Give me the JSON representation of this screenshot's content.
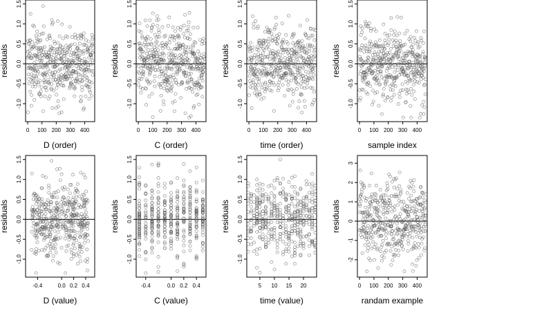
{
  "chart_data": [
    {
      "type": "scatter",
      "xlabel": "D (order)",
      "ylabel": "residuals",
      "xlim": [
        -15,
        470
      ],
      "ylim": [
        -1.45,
        1.6
      ],
      "xticks": [
        "0",
        "100",
        "200",
        "300",
        "400"
      ],
      "yticks": [
        "-1.0",
        "-0.5",
        "0.0",
        "0.5",
        "1.0",
        "1.5"
      ],
      "hline": 0,
      "n_points": 460,
      "x_range": [
        0,
        460
      ],
      "y_range": [
        -1.35,
        1.5
      ],
      "x_mode": "index",
      "y_sd": 0.48
    },
    {
      "type": "scatter",
      "xlabel": "C (order)",
      "ylabel": "residuals",
      "xlim": [
        -15,
        470
      ],
      "ylim": [
        -1.45,
        1.6
      ],
      "xticks": [
        "0",
        "100",
        "200",
        "300",
        "400"
      ],
      "yticks": [
        "-1.0",
        "-0.5",
        "0.0",
        "0.5",
        "1.0",
        "1.5"
      ],
      "hline": 0,
      "n_points": 460,
      "x_range": [
        0,
        460
      ],
      "y_range": [
        -1.35,
        1.5
      ],
      "x_mode": "index",
      "y_sd": 0.48
    },
    {
      "type": "scatter",
      "xlabel": "time (order)",
      "ylabel": "residuals",
      "xlim": [
        -15,
        470
      ],
      "ylim": [
        -1.45,
        1.6
      ],
      "xticks": [
        "0",
        "100",
        "200",
        "300",
        "400"
      ],
      "yticks": [
        "-1.0",
        "-0.5",
        "0.0",
        "0.5",
        "1.0",
        "1.5"
      ],
      "hline": 0,
      "n_points": 460,
      "x_range": [
        0,
        460
      ],
      "y_range": [
        -1.35,
        1.5
      ],
      "x_mode": "index",
      "y_sd": 0.48
    },
    {
      "type": "scatter",
      "xlabel": "sample index",
      "ylabel": "residuals",
      "xlim": [
        -15,
        470
      ],
      "ylim": [
        -1.45,
        1.6
      ],
      "xticks": [
        "0",
        "100",
        "200",
        "300",
        "400"
      ],
      "yticks": [
        "-1.0",
        "-0.5",
        "0.0",
        "0.5",
        "1.0",
        "1.5"
      ],
      "hline": 0,
      "n_points": 460,
      "x_range": [
        0,
        460
      ],
      "y_range": [
        -1.35,
        1.5
      ],
      "x_mode": "index",
      "y_sd": 0.48
    },
    {
      "type": "scatter",
      "xlabel": "D (value)",
      "ylabel": "residuals",
      "xlim": [
        -0.6,
        0.55
      ],
      "ylim": [
        -1.45,
        1.6
      ],
      "xticks": [
        "-0.4",
        "0.0",
        "0.2",
        "0.4"
      ],
      "yticks": [
        "-1.0",
        "-0.5",
        "0.0",
        "0.5",
        "1.0",
        "1.5"
      ],
      "hline": 0,
      "n_points": 460,
      "x_range": [
        -0.5,
        0.45
      ],
      "y_range": [
        -1.35,
        1.5
      ],
      "x_mode": "uniform",
      "y_sd": 0.48
    },
    {
      "type": "scatter",
      "xlabel": "C (value)",
      "ylabel": "residuals",
      "xlim": [
        -0.55,
        0.55
      ],
      "ylim": [
        -1.45,
        1.6
      ],
      "xticks": [
        "-0.4",
        "0.0",
        "0.2",
        "0.4"
      ],
      "yticks": [
        "-1.0",
        "-0.5",
        "0.0",
        "0.5",
        "1.0",
        "1.5"
      ],
      "hline": 0,
      "n_points": 460,
      "x_range": [
        -0.5,
        0.5
      ],
      "y_range": [
        -1.35,
        1.5
      ],
      "x_mode": "discrete",
      "x_levels": [
        -0.5,
        -0.4,
        -0.3,
        -0.2,
        -0.1,
        0.0,
        0.1,
        0.2,
        0.3,
        0.4,
        0.5
      ],
      "y_sd": 0.48
    },
    {
      "type": "scatter",
      "xlabel": "time (value)",
      "ylabel": "residuals",
      "xlim": [
        0.5,
        24.5
      ],
      "ylim": [
        -1.45,
        1.6
      ],
      "xticks": [
        "5",
        "10",
        "15",
        "20"
      ],
      "yticks": [
        "-1.0",
        "-0.5",
        "0.0",
        "0.5",
        "1.0",
        "1.5"
      ],
      "hline": 0,
      "n_points": 460,
      "x_range": [
        1,
        24
      ],
      "y_range": [
        -1.35,
        1.5
      ],
      "x_mode": "discrete",
      "x_levels": [
        1,
        2,
        3,
        4,
        5,
        6,
        7,
        8,
        9,
        10,
        11,
        12,
        13,
        14,
        15,
        16,
        17,
        18,
        19,
        20,
        21,
        22,
        23,
        24
      ],
      "y_sd": 0.48
    },
    {
      "type": "scatter",
      "xlabel": "randam example",
      "ylabel": "residuals",
      "xlim": [
        -15,
        470
      ],
      "ylim": [
        -2.9,
        3.4
      ],
      "xticks": [
        "0",
        "100",
        "200",
        "300",
        "400"
      ],
      "yticks": [
        "-2",
        "-1",
        "0",
        "1",
        "2",
        "3"
      ],
      "hline": 0,
      "n_points": 460,
      "x_range": [
        0,
        460
      ],
      "y_range": [
        -2.6,
        3.2
      ],
      "x_mode": "index",
      "y_sd": 1.0
    }
  ]
}
